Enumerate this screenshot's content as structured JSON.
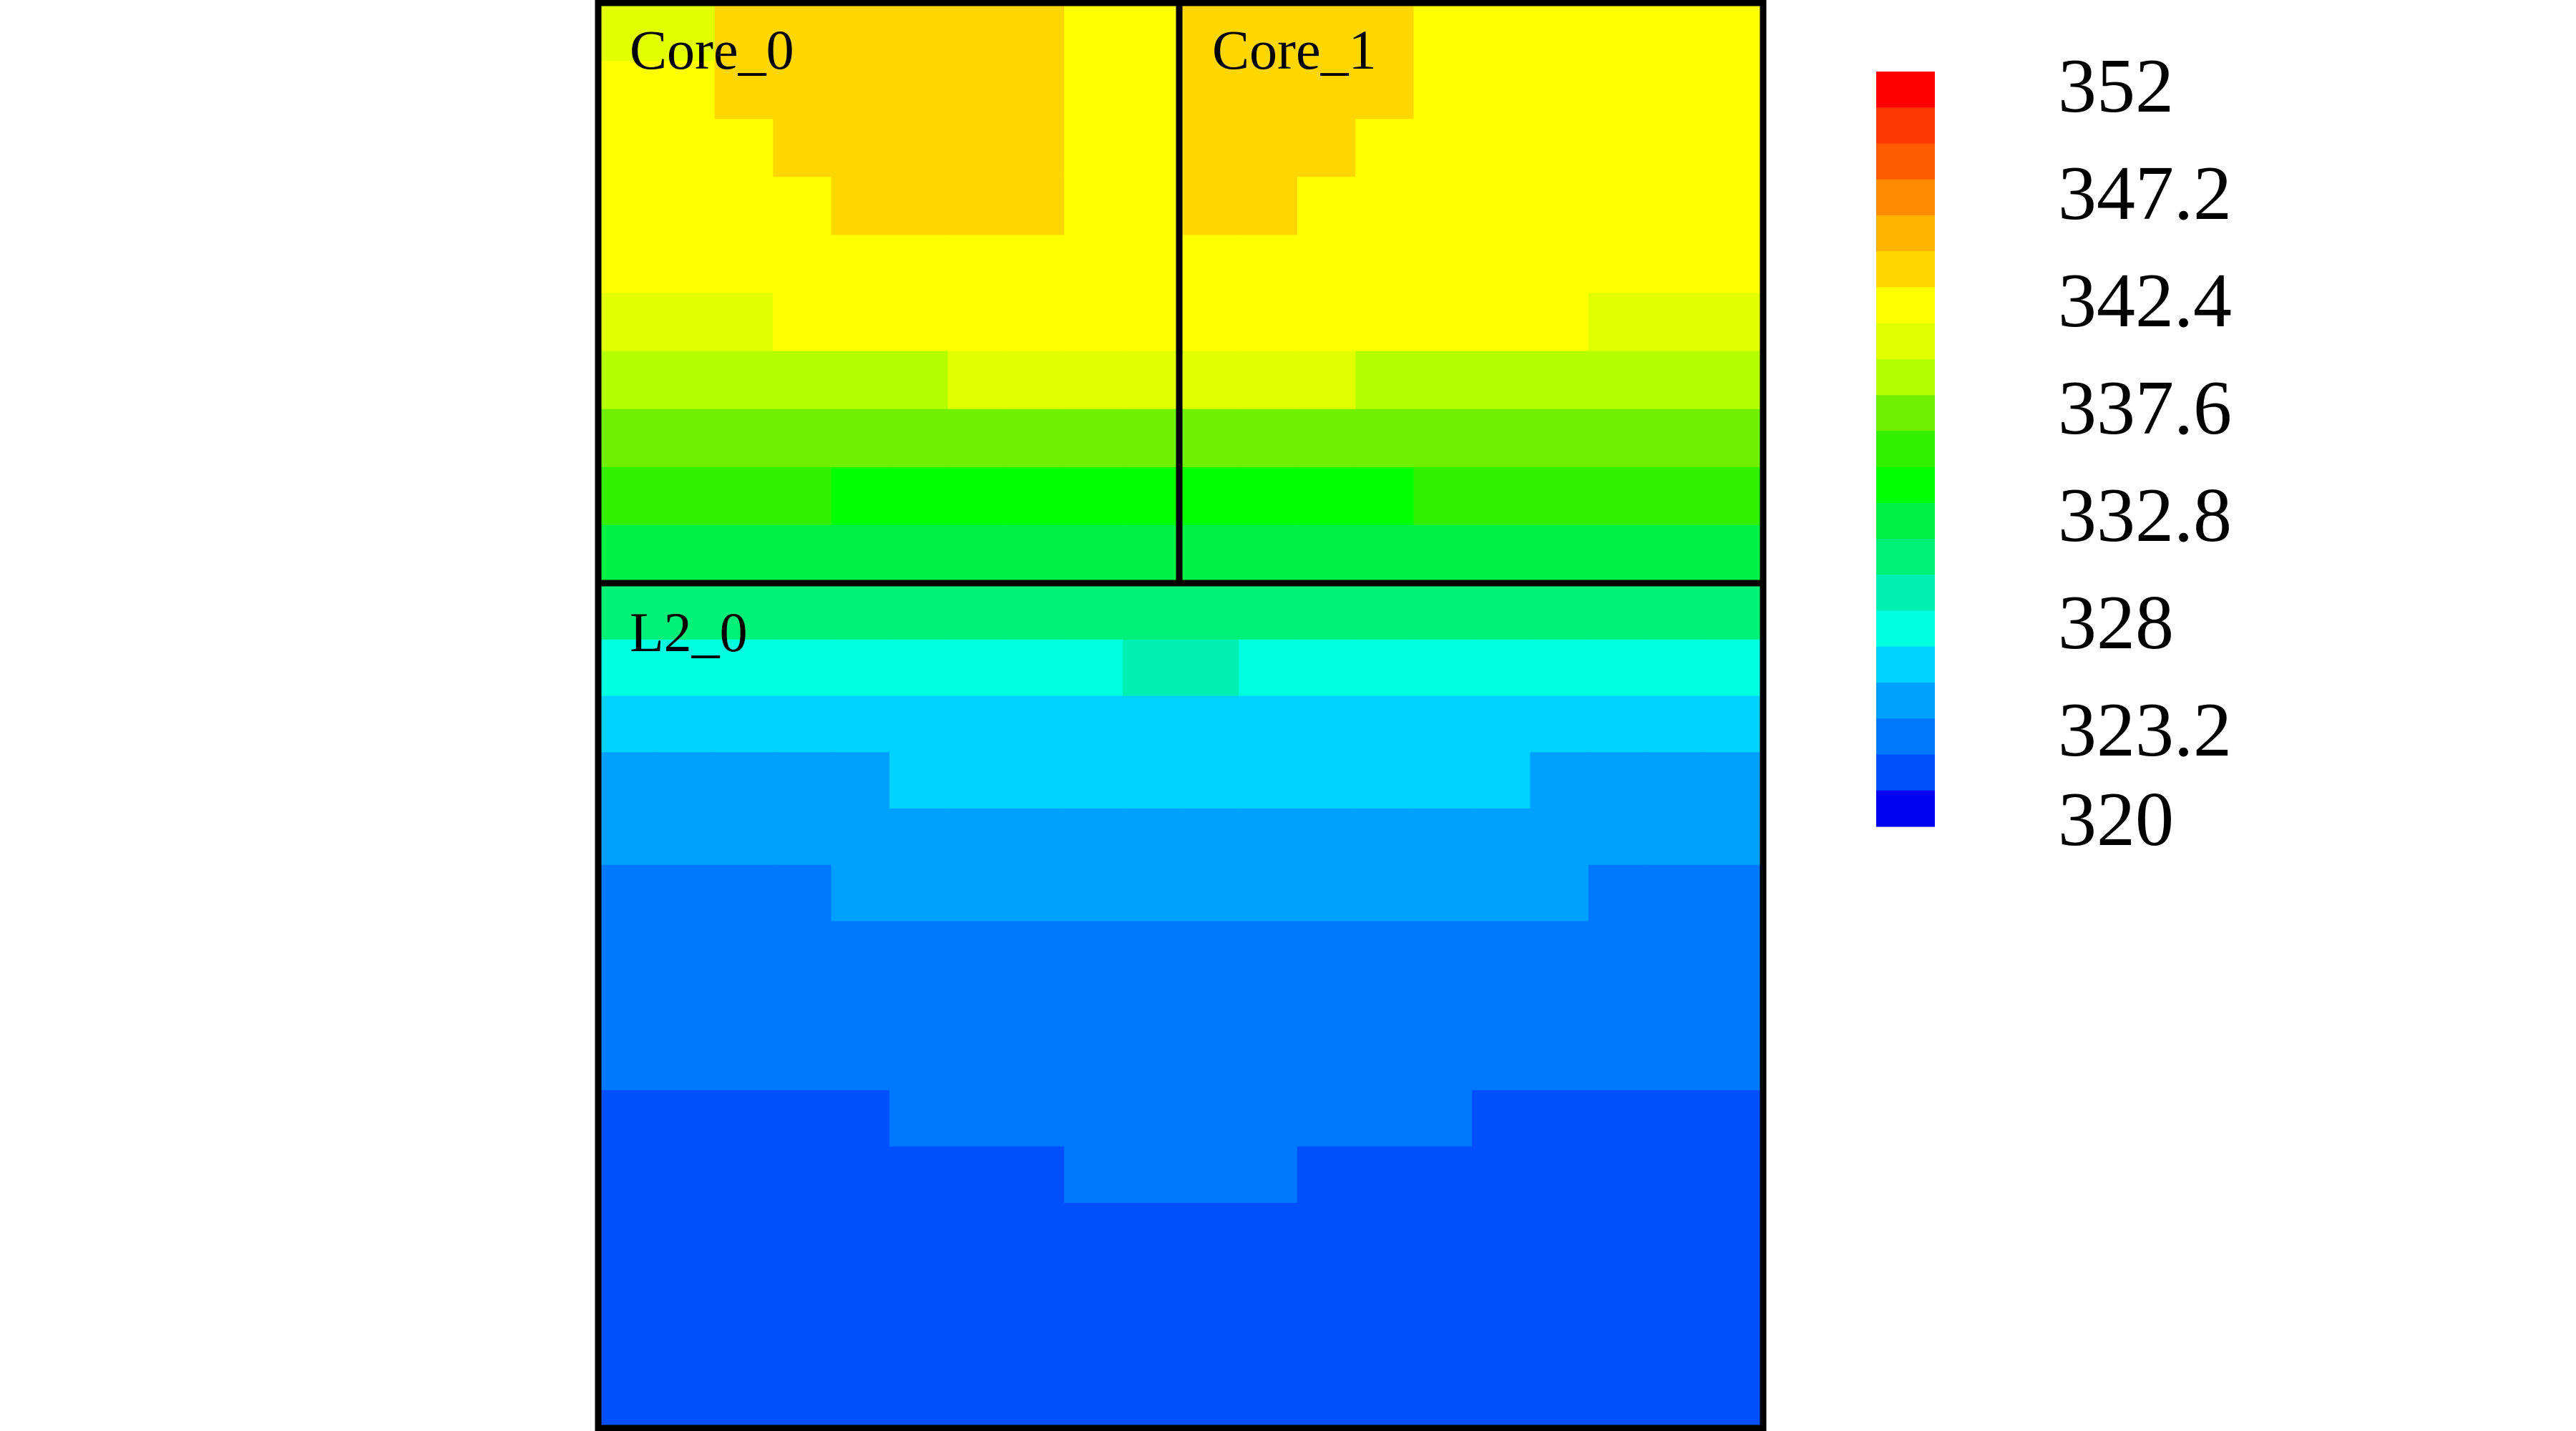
{
  "chart_data": {
    "type": "heatmap",
    "title": "",
    "xlabel": "",
    "ylabel": "",
    "grid": false,
    "legend": "colorbar, right",
    "blocks": [
      {
        "label": "Core_0"
      },
      {
        "label": "Core_1"
      },
      {
        "label": "L2_0"
      }
    ],
    "scale": {
      "min": 320,
      "max": 352,
      "steps": 21,
      "tick_labels": [
        "352",
        "347.2",
        "342.4",
        "337.6",
        "332.8",
        "328",
        "323.2",
        "320"
      ],
      "tick_values": [
        352,
        347.2,
        342.4,
        337.6,
        332.8,
        328,
        323.2,
        320
      ],
      "colors_top_to_bottom": [
        "#ff0000",
        "#ff3700",
        "#ff5a00",
        "#ff8c00",
        "#ffb400",
        "#ffd700",
        "#ffff00",
        "#e1ff00",
        "#b4ff00",
        "#6ef000",
        "#32f000",
        "#00ff00",
        "#00f046",
        "#00f078",
        "#00f0b4",
        "#00ffe1",
        "#00d2ff",
        "#00a0ff",
        "#0078ff",
        "#0050ff",
        "#0000f0"
      ]
    },
    "rows": [
      {
        "block": "core",
        "temp": [
          340.8,
          340.8,
          344.0,
          344.0,
          344.0,
          344.0,
          344.0,
          344.0,
          342.4,
          342.4,
          344.0,
          344.0,
          344.0,
          344.0,
          342.4,
          342.4,
          342.4,
          342.4,
          342.4,
          342.4
        ]
      },
      {
        "block": "core",
        "temp": [
          342.4,
          342.4,
          344.0,
          344.0,
          344.0,
          344.0,
          344.0,
          344.0,
          342.4,
          342.4,
          344.0,
          344.0,
          344.0,
          344.0,
          342.4,
          342.4,
          342.4,
          342.4,
          342.4,
          342.4
        ]
      },
      {
        "block": "core",
        "temp": [
          342.4,
          342.4,
          342.4,
          344.0,
          344.0,
          344.0,
          344.0,
          344.0,
          342.4,
          342.4,
          344.0,
          344.0,
          344.0,
          342.4,
          342.4,
          342.4,
          342.4,
          342.4,
          342.4,
          342.4
        ]
      },
      {
        "block": "core",
        "temp": [
          342.4,
          342.4,
          342.4,
          342.4,
          344.0,
          344.0,
          344.0,
          344.0,
          342.4,
          342.4,
          344.0,
          344.0,
          342.4,
          342.4,
          342.4,
          342.4,
          342.4,
          342.4,
          342.4,
          342.4
        ]
      },
      {
        "block": "core",
        "temp": [
          342.4,
          342.4,
          342.4,
          342.4,
          342.4,
          342.4,
          342.4,
          342.4,
          342.4,
          342.4,
          342.4,
          342.4,
          342.4,
          342.4,
          342.4,
          342.4,
          342.4,
          342.4,
          342.4,
          342.4
        ]
      },
      {
        "block": "core",
        "temp": [
          340.8,
          340.8,
          340.8,
          342.4,
          342.4,
          342.4,
          342.4,
          342.4,
          342.4,
          342.4,
          342.4,
          342.4,
          342.4,
          342.4,
          342.4,
          342.4,
          342.4,
          340.8,
          340.8,
          340.8
        ]
      },
      {
        "block": "core",
        "temp": [
          339.2,
          339.2,
          339.2,
          339.2,
          339.2,
          339.2,
          340.8,
          340.8,
          340.8,
          340.8,
          340.8,
          340.8,
          340.8,
          339.2,
          339.2,
          339.2,
          339.2,
          339.2,
          339.2,
          339.2
        ]
      },
      {
        "block": "core",
        "temp": [
          337.6,
          337.6,
          337.6,
          337.6,
          337.6,
          337.6,
          337.6,
          337.6,
          337.6,
          337.6,
          337.6,
          337.6,
          337.6,
          337.6,
          337.6,
          337.6,
          337.6,
          337.6,
          337.6,
          337.6
        ]
      },
      {
        "block": "core",
        "temp": [
          336.0,
          336.0,
          336.0,
          336.0,
          334.4,
          334.4,
          334.4,
          334.4,
          334.4,
          334.4,
          334.4,
          334.4,
          334.4,
          334.4,
          336.0,
          336.0,
          336.0,
          336.0,
          336.0,
          336.0
        ]
      },
      {
        "block": "core",
        "temp": [
          332.8,
          332.8,
          332.8,
          332.8,
          332.8,
          332.8,
          332.8,
          332.8,
          332.8,
          332.8,
          332.8,
          332.8,
          332.8,
          332.8,
          332.8,
          332.8,
          332.8,
          332.8,
          332.8,
          332.8
        ]
      },
      {
        "block": "l2",
        "temp": [
          331.2,
          331.2,
          331.2,
          331.2,
          331.2,
          331.2,
          331.2,
          331.2,
          331.2,
          331.2,
          331.2,
          331.2,
          331.2,
          331.2,
          331.2,
          331.2,
          331.2,
          331.2,
          331.2,
          331.2
        ]
      },
      {
        "block": "l2",
        "temp": [
          328.0,
          328.0,
          328.0,
          328.0,
          328.0,
          328.0,
          328.0,
          328.0,
          328.0,
          329.6,
          329.6,
          328.0,
          328.0,
          328.0,
          328.0,
          328.0,
          328.0,
          328.0,
          328.0,
          328.0
        ]
      },
      {
        "block": "l2",
        "temp": [
          326.4,
          326.4,
          326.4,
          326.4,
          326.4,
          326.4,
          326.4,
          326.4,
          326.4,
          326.4,
          326.4,
          326.4,
          326.4,
          326.4,
          326.4,
          326.4,
          326.4,
          326.4,
          326.4,
          326.4
        ]
      },
      {
        "block": "l2",
        "temp": [
          324.8,
          324.8,
          324.8,
          324.8,
          324.8,
          326.4,
          326.4,
          326.4,
          326.4,
          326.4,
          326.4,
          326.4,
          326.4,
          326.4,
          326.4,
          326.4,
          324.8,
          324.8,
          324.8,
          324.8
        ]
      },
      {
        "block": "l2",
        "temp": [
          324.8,
          324.8,
          324.8,
          324.8,
          324.8,
          324.8,
          324.8,
          324.8,
          324.8,
          324.8,
          324.8,
          324.8,
          324.8,
          324.8,
          324.8,
          324.8,
          324.8,
          324.8,
          324.8,
          324.8
        ]
      },
      {
        "block": "l2",
        "temp": [
          323.2,
          323.2,
          323.2,
          323.2,
          324.8,
          324.8,
          324.8,
          324.8,
          324.8,
          324.8,
          324.8,
          324.8,
          324.8,
          324.8,
          324.8,
          324.8,
          324.8,
          323.2,
          323.2,
          323.2
        ]
      },
      {
        "block": "l2",
        "temp": [
          323.2,
          323.2,
          323.2,
          323.2,
          323.2,
          323.2,
          323.2,
          323.2,
          323.2,
          323.2,
          323.2,
          323.2,
          323.2,
          323.2,
          323.2,
          323.2,
          323.2,
          323.2,
          323.2,
          323.2
        ]
      },
      {
        "block": "l2",
        "temp": [
          323.2,
          323.2,
          323.2,
          323.2,
          323.2,
          323.2,
          323.2,
          323.2,
          323.2,
          323.2,
          323.2,
          323.2,
          323.2,
          323.2,
          323.2,
          323.2,
          323.2,
          323.2,
          323.2,
          323.2
        ]
      },
      {
        "block": "l2",
        "temp": [
          323.2,
          323.2,
          323.2,
          323.2,
          323.2,
          323.2,
          323.2,
          323.2,
          323.2,
          323.2,
          323.2,
          323.2,
          323.2,
          323.2,
          323.2,
          323.2,
          323.2,
          323.2,
          323.2,
          323.2
        ]
      },
      {
        "block": "l2",
        "temp": [
          321.6,
          321.6,
          321.6,
          321.6,
          321.6,
          323.2,
          323.2,
          323.2,
          323.2,
          323.2,
          323.2,
          323.2,
          323.2,
          323.2,
          323.2,
          321.6,
          321.6,
          321.6,
          321.6,
          321.6
        ]
      },
      {
        "block": "l2",
        "temp": [
          321.6,
          321.6,
          321.6,
          321.6,
          321.6,
          321.6,
          321.6,
          321.6,
          323.2,
          323.2,
          323.2,
          323.2,
          321.6,
          321.6,
          321.6,
          321.6,
          321.6,
          321.6,
          321.6,
          321.6
        ]
      },
      {
        "block": "l2",
        "temp": [
          321.6,
          321.6,
          321.6,
          321.6,
          321.6,
          321.6,
          321.6,
          321.6,
          321.6,
          321.6,
          321.6,
          321.6,
          321.6,
          321.6,
          321.6,
          321.6,
          321.6,
          321.6,
          321.6,
          321.6
        ]
      },
      {
        "block": "l2",
        "temp": [
          321.6,
          321.6,
          321.6,
          321.6,
          321.6,
          321.6,
          321.6,
          321.6,
          321.6,
          321.6,
          321.6,
          321.6,
          321.6,
          321.6,
          321.6,
          321.6,
          321.6,
          321.6,
          321.6,
          321.6
        ]
      },
      {
        "block": "l2",
        "temp": [
          321.6,
          321.6,
          321.6,
          321.6,
          321.6,
          321.6,
          321.6,
          321.6,
          321.6,
          321.6,
          321.6,
          321.6,
          321.6,
          321.6,
          321.6,
          321.6,
          321.6,
          321.6,
          321.6,
          321.6
        ]
      },
      {
        "block": "l2",
        "temp": [
          321.6,
          321.6,
          321.6,
          321.6,
          321.6,
          321.6,
          321.6,
          321.6,
          321.6,
          321.6,
          321.6,
          321.6,
          321.6,
          321.6,
          321.6,
          321.6,
          321.6,
          321.6,
          321.6,
          321.6
        ]
      }
    ]
  }
}
